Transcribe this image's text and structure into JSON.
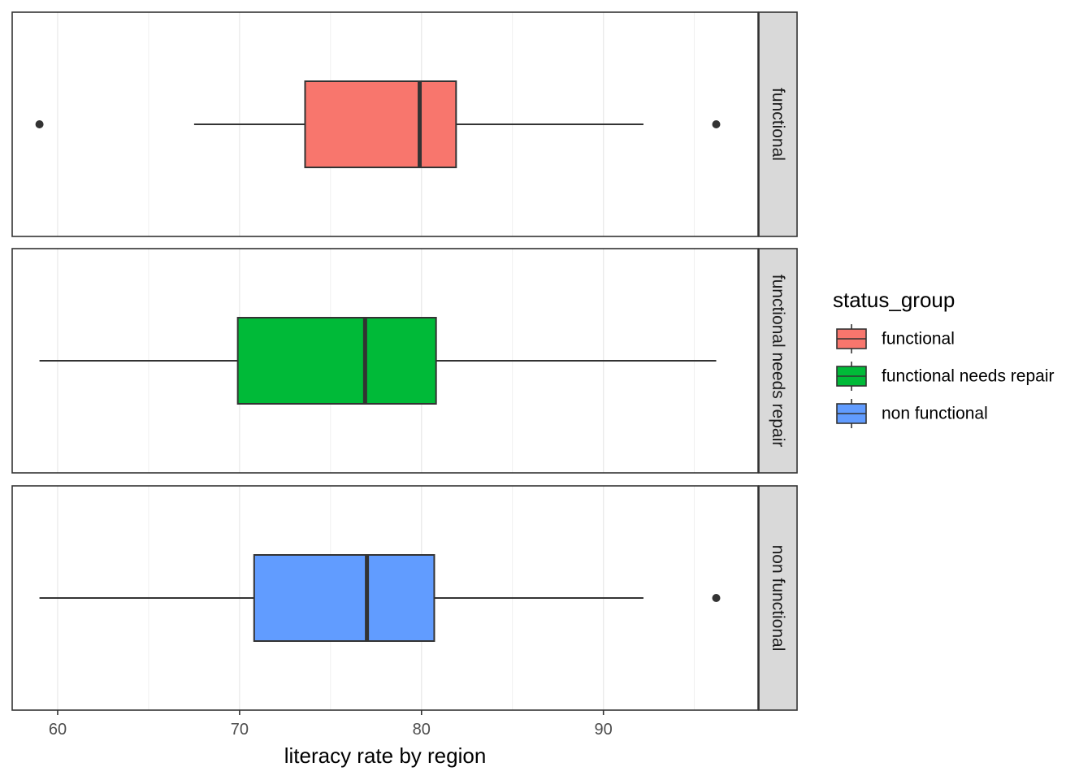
{
  "chart_data": {
    "type": "boxplot",
    "facet_by": "status_group",
    "xlabel": "literacy rate by region",
    "ylabel": "",
    "xlim": [
      57.5,
      98.5
    ],
    "xticks": [
      60,
      70,
      80,
      90
    ],
    "xtick_labels": [
      "60",
      "70",
      "80",
      "90"
    ],
    "grid": true,
    "legend": {
      "title": "status_group",
      "position": "right",
      "entries": [
        "functional",
        "functional needs repair",
        "non functional"
      ]
    },
    "panels": [
      {
        "name": "functional",
        "color": "#F8766D",
        "whisker_low": 67.5,
        "q1": 73.6,
        "median": 79.9,
        "q3": 81.9,
        "whisker_high": 92.2,
        "outliers": [
          59.0,
          96.2
        ]
      },
      {
        "name": "functional needs repair",
        "color": "#00BA38",
        "whisker_low": 59.0,
        "q1": 69.9,
        "median": 76.9,
        "q3": 80.8,
        "whisker_high": 96.2,
        "outliers": []
      },
      {
        "name": "non functional",
        "color": "#619CFF",
        "whisker_low": 59.0,
        "q1": 70.8,
        "median": 77.0,
        "q3": 80.7,
        "whisker_high": 92.2,
        "outliers": [
          96.2
        ]
      }
    ]
  }
}
